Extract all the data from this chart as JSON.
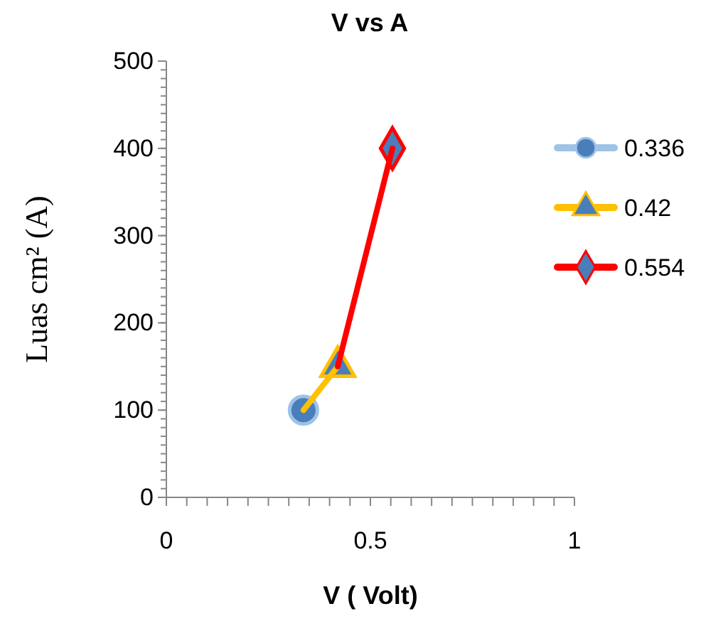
{
  "chart_data": {
    "type": "line",
    "title": "V vs A",
    "xlabel": "V ( Volt)",
    "ylabel": "Luas cm² (A)",
    "xlim": [
      0,
      1
    ],
    "xticks": [
      0,
      0.5,
      1
    ],
    "ylim": [
      0,
      500
    ],
    "yticks": [
      0,
      100,
      200,
      300,
      400,
      500
    ],
    "grid": false,
    "legend": "right",
    "series": [
      {
        "name": "0.336",
        "color": "#9dc3e6",
        "marker": "circle",
        "x": [
          0.336
        ],
        "values": [
          100
        ]
      },
      {
        "name": "0.42",
        "color": "#ffc000",
        "marker": "triangle",
        "x": [
          0.336,
          0.42
        ],
        "values": [
          100,
          150
        ]
      },
      {
        "name": "0.554",
        "color": "#ff0000",
        "marker": "diamond",
        "x": [
          0.42,
          0.554
        ],
        "values": [
          150,
          400
        ]
      }
    ]
  }
}
